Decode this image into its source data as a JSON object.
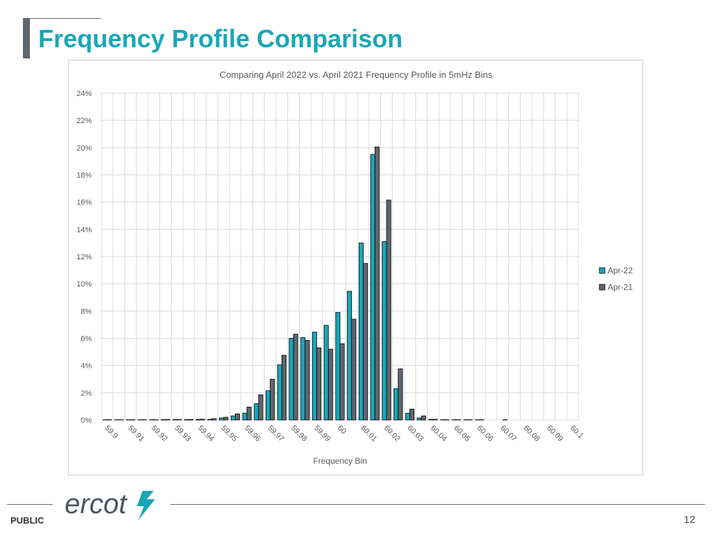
{
  "slide": {
    "title": "Frequency Profile Comparison",
    "footer_label": "PUBLIC",
    "page_number": "12",
    "logo_text": "ercot"
  },
  "colors": {
    "title": "#1aa6b7",
    "series_apr22": "#1aa6b7",
    "series_apr21": "#5d6770",
    "logo": "#4a5560"
  },
  "chart_data": {
    "type": "bar",
    "title": "Comparing April 2022 vs. April 2021 Frequency Profile in 5mHz Bins",
    "xlabel": "Frequency Bin",
    "ylabel": "",
    "ylim": [
      0,
      24
    ],
    "yticks": [
      "0%",
      "2%",
      "4%",
      "6%",
      "8%",
      "10%",
      "12%",
      "14%",
      "16%",
      "18%",
      "20%",
      "22%",
      "24%"
    ],
    "grid": true,
    "legend_position": "right",
    "categories": [
      "59.9",
      "",
      "59.91",
      "",
      "59.92",
      "",
      "59.93",
      "",
      "59.94",
      "",
      "59.95",
      "",
      "59.96",
      "",
      "59.97",
      "",
      "59.98",
      "",
      "59.99",
      "",
      "60",
      "",
      "60.01",
      "",
      "60.02",
      "",
      "60.03",
      "",
      "60.04",
      "",
      "60.05",
      "",
      "60.06",
      "",
      "60.07",
      "",
      "60.08",
      "",
      "60.09",
      "",
      "60.1"
    ],
    "series": [
      {
        "name": "Apr-22",
        "values": [
          0.02,
          0.02,
          0.02,
          0.02,
          0.02,
          0.03,
          0.03,
          0.03,
          0.04,
          0.05,
          0.15,
          0.3,
          0.5,
          1.2,
          2.15,
          4.05,
          6.0,
          6.05,
          6.45,
          6.95,
          7.9,
          9.45,
          13.0,
          19.5,
          13.1,
          2.3,
          0.5,
          0.15,
          0.05,
          0.02,
          0.02,
          0.02,
          0.02,
          0,
          0,
          0,
          0,
          0,
          0,
          0,
          0
        ]
      },
      {
        "name": "Apr-21",
        "values": [
          0.02,
          0.02,
          0.02,
          0.02,
          0.02,
          0.03,
          0.03,
          0.04,
          0.06,
          0.1,
          0.2,
          0.45,
          0.95,
          1.85,
          3.0,
          4.75,
          6.3,
          5.85,
          5.3,
          5.2,
          5.6,
          7.4,
          11.5,
          20.05,
          16.15,
          3.75,
          0.8,
          0.3,
          0.05,
          0.02,
          0.02,
          0.02,
          0.02,
          0,
          0.02,
          0,
          0,
          0,
          0,
          0,
          0
        ]
      }
    ]
  }
}
